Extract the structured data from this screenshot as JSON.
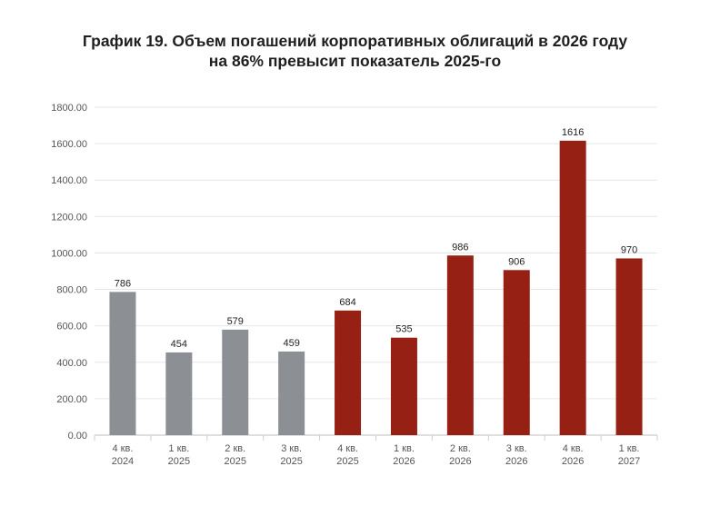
{
  "chart_data": {
    "type": "bar",
    "title_line1": "График 19. Объем погашений корпоративных облигаций в 2026 году",
    "title_line2": "на 86% превысит показатель 2025-го",
    "categories": [
      [
        "4 кв.",
        "2024"
      ],
      [
        "1 кв.",
        "2025"
      ],
      [
        "2 кв.",
        "2025"
      ],
      [
        "3 кв.",
        "2025"
      ],
      [
        "4 кв.",
        "2025"
      ],
      [
        "1 кв.",
        "2026"
      ],
      [
        "2 кв.",
        "2026"
      ],
      [
        "3 кв.",
        "2026"
      ],
      [
        "4 кв.",
        "2026"
      ],
      [
        "1 кв.",
        "2027"
      ]
    ],
    "values": [
      786,
      454,
      579,
      459,
      684,
      535,
      986,
      906,
      1616,
      970
    ],
    "data_labels": [
      "786",
      "454",
      "579",
      "459",
      "684",
      "535",
      "986",
      "906",
      "1616",
      "970"
    ],
    "bar_colors": [
      "#8c9095",
      "#8c9095",
      "#8c9095",
      "#8c9095",
      "#962014",
      "#962014",
      "#962014",
      "#962014",
      "#962014",
      "#962014"
    ],
    "y_ticks": [
      "0.00",
      "200.00",
      "400.00",
      "600.00",
      "800.00",
      "1000.00",
      "1200.00",
      "1400.00",
      "1600.00",
      "1800.00"
    ],
    "y_tick_values": [
      0,
      200,
      400,
      600,
      800,
      1000,
      1200,
      1400,
      1600,
      1800
    ],
    "ylim": [
      0,
      1800
    ],
    "grid": true,
    "xlabel": "",
    "ylabel": ""
  }
}
